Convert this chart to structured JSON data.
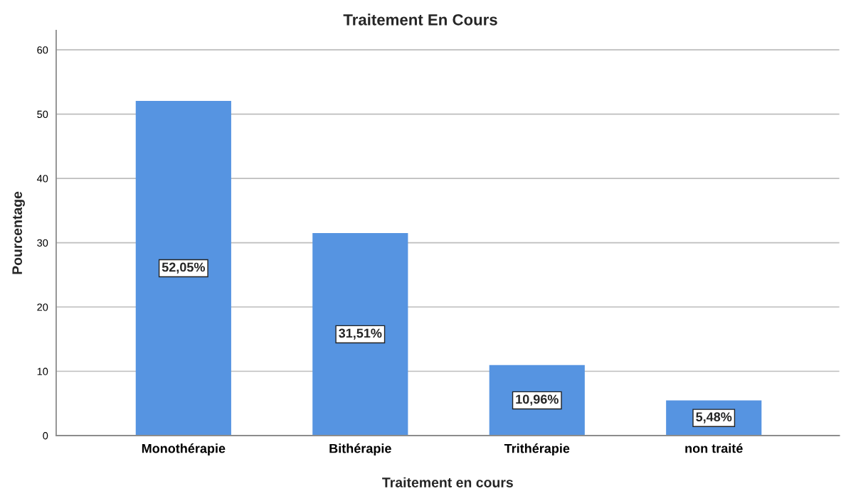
{
  "chart_data": {
    "type": "bar",
    "title": "Traitement En Cours",
    "xlabel": "Traitement en cours",
    "ylabel": "Pourcentage",
    "categories": [
      "Monothérapie",
      "Bithérapie",
      "Trithérapie",
      "non traité"
    ],
    "values": [
      52.05,
      31.51,
      10.96,
      5.48
    ],
    "value_labels": [
      "52,05%",
      "31,51%",
      "10,96%",
      "5,48%"
    ],
    "color": "#5694e1",
    "ylim": [
      0,
      63
    ],
    "yticks": [
      0,
      10,
      20,
      30,
      40,
      50,
      60
    ],
    "grid": "y"
  }
}
